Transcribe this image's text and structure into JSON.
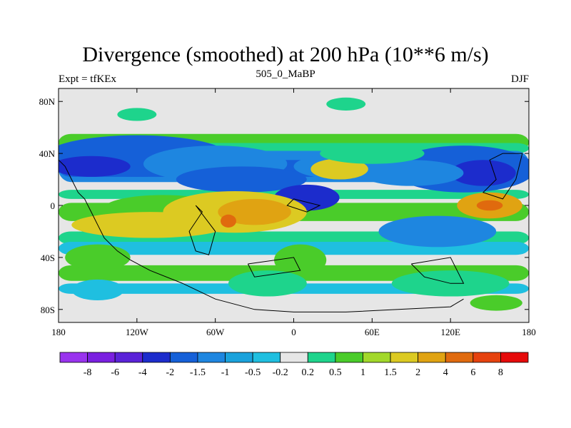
{
  "chart_data": {
    "type": "heatmap",
    "title": "Divergence (smoothed) at 200 hPa (10**6 m/s)",
    "subtitle": "505_0_MaBP",
    "left_label": "Expt = tfKEx",
    "right_label": "DJF",
    "x_ticks": [
      "180",
      "120W",
      "60W",
      "0",
      "60E",
      "120E",
      "180"
    ],
    "x_tick_values": [
      -180,
      -120,
      -60,
      0,
      60,
      120,
      180
    ],
    "y_ticks": [
      "80N",
      "40N",
      "0",
      "40S",
      "80S"
    ],
    "y_tick_values": [
      80,
      40,
      0,
      -40,
      -80
    ],
    "xlim": [
      -180,
      180
    ],
    "ylim": [
      -90,
      90
    ],
    "colorbar_labels": [
      "-8",
      "-6",
      "-4",
      "-2",
      "-1.5",
      "-1",
      "-0.5",
      "-0.2",
      "0.2",
      "0.5",
      "1",
      "1.5",
      "2",
      "4",
      "6",
      "8"
    ],
    "colorbar_colors": [
      "#9933ee",
      "#7a1fe0",
      "#5a22d8",
      "#1c2ccc",
      "#1560d8",
      "#1e86e0",
      "#1aa2dc",
      "#1fbfe0",
      "#e6e6e6",
      "#1ed48c",
      "#4acc2a",
      "#a2d82a",
      "#dcca22",
      "#e0a312",
      "#e06a0e",
      "#e6420e",
      "#e60a0a"
    ]
  },
  "field": {
    "fill_colors": {
      "n4": "#1c2ccc",
      "n3": "#1560d8",
      "n2": "#1e86e0",
      "n1": "#1fbfe0",
      "zero": "#e6e6e6",
      "p1": "#1ed48c",
      "p2": "#4acc2a",
      "p3": "#a2d82a",
      "p4": "#dcca22",
      "p5": "#e0a312",
      "p6": "#e06a0e"
    },
    "blobs": [
      {
        "lon": -120,
        "lat": 38,
        "rlon": 70,
        "rlat": 16,
        "level": "n3"
      },
      {
        "lon": -155,
        "lat": 30,
        "rlon": 30,
        "rlat": 8,
        "level": "n4"
      },
      {
        "lon": -60,
        "lat": 32,
        "rlon": 55,
        "rlat": 14,
        "level": "n2"
      },
      {
        "lon": -40,
        "lat": 20,
        "rlon": 50,
        "rlat": 10,
        "level": "n3"
      },
      {
        "lon": 10,
        "lat": 6,
        "rlon": 25,
        "rlat": 10,
        "level": "n4"
      },
      {
        "lon": 40,
        "lat": 30,
        "rlon": 40,
        "rlat": 10,
        "level": "n2"
      },
      {
        "lon": 130,
        "lat": 28,
        "rlon": 55,
        "rlat": 18,
        "level": "n3"
      },
      {
        "lon": 145,
        "lat": 25,
        "rlon": 25,
        "rlat": 10,
        "level": "n4"
      },
      {
        "lon": 90,
        "lat": 25,
        "rlon": 40,
        "rlat": 10,
        "level": "n2"
      },
      {
        "lon": -100,
        "lat": -2,
        "rlon": 45,
        "rlat": 10,
        "level": "p2"
      },
      {
        "lon": -110,
        "lat": -15,
        "rlon": 60,
        "rlat": 10,
        "level": "p4"
      },
      {
        "lon": -45,
        "lat": -5,
        "rlon": 55,
        "rlat": 16,
        "level": "p4"
      },
      {
        "lon": -30,
        "lat": -5,
        "rlon": 28,
        "rlat": 10,
        "level": "p5"
      },
      {
        "lon": -50,
        "lat": -12,
        "rlon": 6,
        "rlat": 5,
        "level": "p6"
      },
      {
        "lon": 35,
        "lat": 28,
        "rlon": 22,
        "rlat": 8,
        "level": "p4"
      },
      {
        "lon": 150,
        "lat": 0,
        "rlon": 25,
        "rlat": 10,
        "level": "p5"
      },
      {
        "lon": 150,
        "lat": 0,
        "rlon": 10,
        "rlat": 4,
        "level": "p6"
      },
      {
        "lon": 110,
        "lat": -20,
        "rlon": 45,
        "rlat": 12,
        "level": "n2"
      },
      {
        "lon": -150,
        "lat": -40,
        "rlon": 25,
        "rlat": 10,
        "level": "p2"
      },
      {
        "lon": 5,
        "lat": -42,
        "rlon": 20,
        "rlat": 12,
        "level": "p2"
      },
      {
        "lon": -20,
        "lat": -60,
        "rlon": 30,
        "rlat": 10,
        "level": "p1"
      },
      {
        "lon": 120,
        "lat": -60,
        "rlon": 45,
        "rlat": 10,
        "level": "p1"
      },
      {
        "lon": 155,
        "lat": -75,
        "rlon": 20,
        "rlat": 6,
        "level": "p2"
      },
      {
        "lon": -150,
        "lat": -65,
        "rlon": 20,
        "rlat": 8,
        "level": "n1"
      },
      {
        "lon": 60,
        "lat": 40,
        "rlon": 40,
        "rlat": 8,
        "level": "p1"
      },
      {
        "lon": -120,
        "lat": 70,
        "rlon": 15,
        "rlat": 5,
        "level": "p1"
      },
      {
        "lon": 40,
        "lat": 78,
        "rlon": 15,
        "rlat": 5,
        "level": "p1"
      }
    ]
  }
}
